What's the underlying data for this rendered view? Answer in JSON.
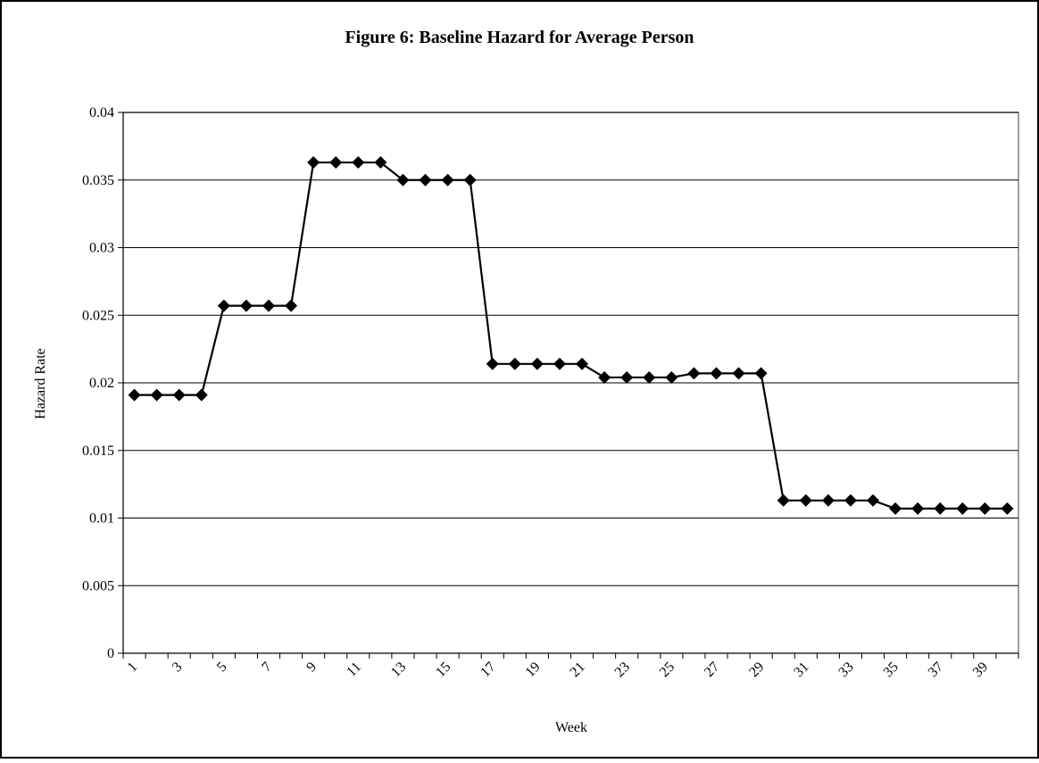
{
  "chart_data": {
    "type": "line",
    "title": "Figure 6: Baseline Hazard for Average Person",
    "x_label": "Week",
    "y_label": "Hazard Rate",
    "categories": [
      1,
      null,
      3,
      null,
      5,
      null,
      7,
      null,
      9,
      null,
      11,
      null,
      13,
      null,
      15,
      null,
      17,
      null,
      19,
      null,
      21,
      null,
      23,
      null,
      25,
      null,
      27,
      null,
      29,
      null,
      31,
      null,
      33,
      null,
      35,
      null,
      37,
      null,
      39,
      null
    ],
    "series": [
      {
        "name": "Baseline hazard",
        "color": "#000000",
        "values": [
          0.0191,
          0.0191,
          0.0191,
          0.0191,
          0.0257,
          0.0257,
          0.0257,
          0.0257,
          0.0363,
          0.0363,
          0.0363,
          0.0363,
          0.035,
          0.035,
          0.035,
          0.035,
          0.0214,
          0.0214,
          0.0214,
          0.0214,
          0.0214,
          0.0204,
          0.0204,
          0.0204,
          0.0204,
          0.0207,
          0.0207,
          0.0207,
          0.0207,
          0.0113,
          0.0113,
          0.0113,
          0.0113,
          0.0113,
          0.0107,
          0.0107,
          0.0107,
          0.0107,
          0.0107,
          0.0107
        ]
      }
    ],
    "ylim": [
      0,
      0.04
    ],
    "yticks": [
      0,
      0.005,
      0.01,
      0.015,
      0.02,
      0.025,
      0.03,
      0.035,
      0.04
    ],
    "grid": true
  }
}
